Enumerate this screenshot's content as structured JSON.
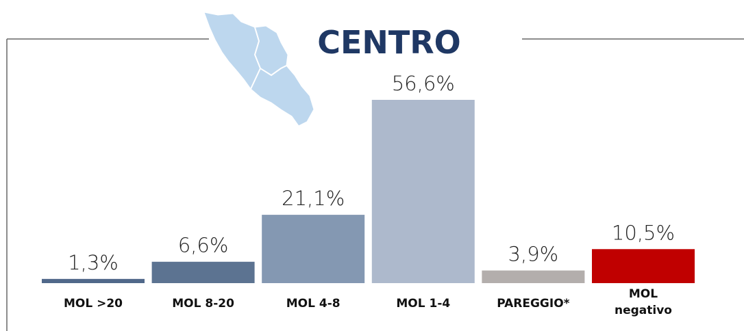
{
  "chart_data": {
    "type": "bar",
    "title": "CENTRO",
    "categories": [
      "MOL >20",
      "MOL 8-20",
      "MOL 4-8",
      "MOL 1-4",
      "PAREGGIO*",
      "MOL negativo"
    ],
    "values": [
      1.3,
      6.6,
      21.1,
      56.6,
      3.9,
      10.5
    ],
    "value_labels": [
      "1,3%",
      "6,6%",
      "21,1%",
      "56,6%",
      "3,9%",
      "10,5%"
    ],
    "colors": [
      "#50688a",
      "#5c7391",
      "#8498b2",
      "#adb9cc",
      "#b3aeac",
      "#c00000"
    ]
  }
}
